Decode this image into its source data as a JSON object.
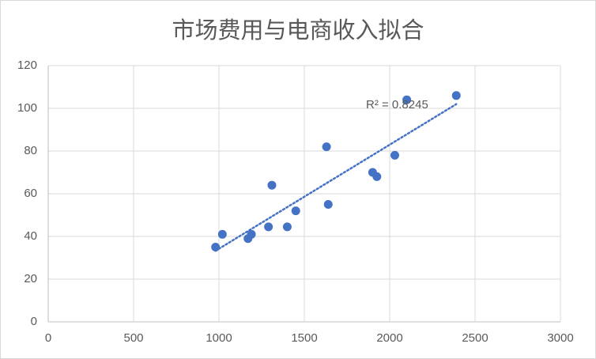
{
  "chart_data": {
    "type": "scatter",
    "title": "市场费用与电商收入拟合",
    "xlim": [
      0,
      3000
    ],
    "ylim": [
      0,
      120
    ],
    "x_ticks": [
      0,
      500,
      1000,
      1500,
      2000,
      2500,
      3000
    ],
    "y_ticks": [
      0,
      20,
      40,
      60,
      80,
      100,
      120
    ],
    "grid": true,
    "legend": "none",
    "series": [
      {
        "color": "#4472C4",
        "x": [
          980,
          1020,
          1170,
          1190,
          1290,
          1310,
          1400,
          1450,
          1630,
          1640,
          1900,
          1925,
          2030,
          2100,
          2390
        ],
        "y": [
          35,
          41,
          39,
          41,
          44.5,
          64,
          44.5,
          52,
          82,
          55,
          70,
          68,
          78,
          104,
          106
        ]
      }
    ],
    "trendline": {
      "type": "linear",
      "style": "dotted",
      "color": "#4472C4",
      "label": "R² = 0.8245"
    },
    "colors": {
      "grid": "#d9d9d9",
      "axis": "#bfbfbf",
      "text": "#595959",
      "border": "#d9d9d9"
    }
  }
}
